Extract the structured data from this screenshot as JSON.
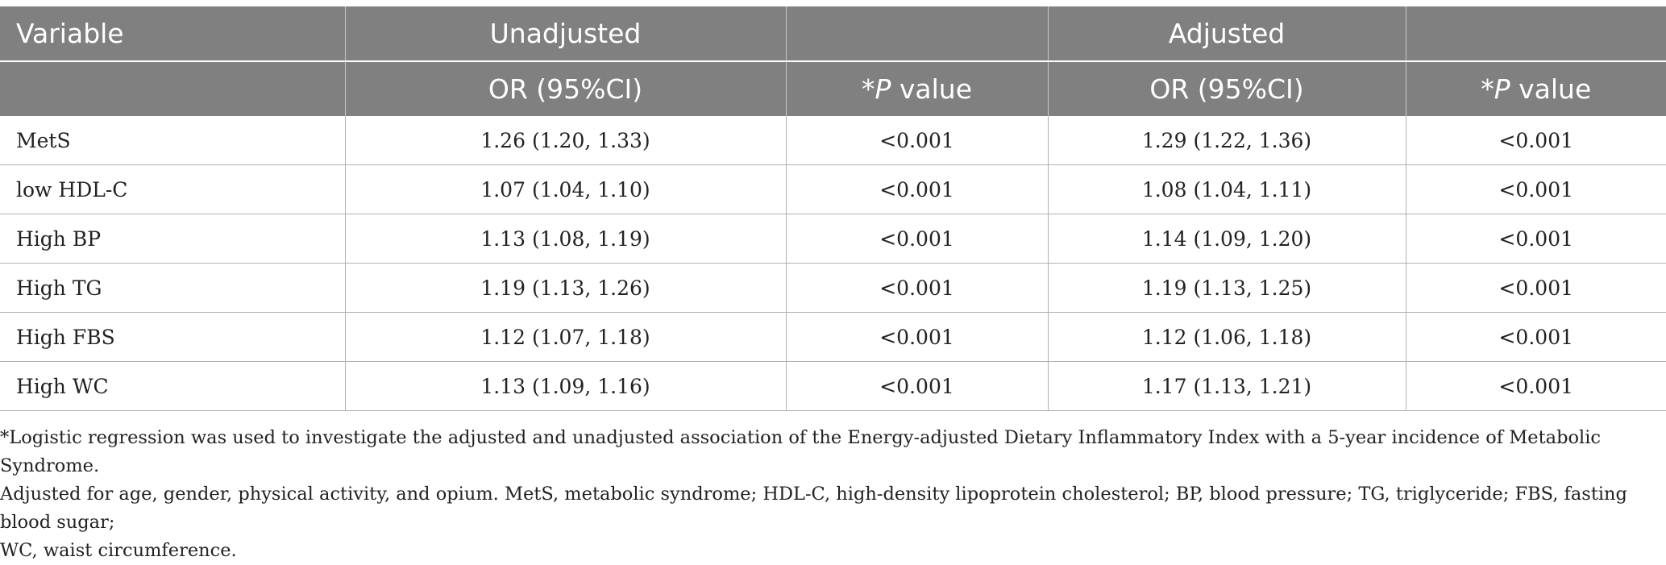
{
  "table": {
    "header_row1": {
      "variable": "Variable",
      "unadjusted": "Unadjusted",
      "adjusted": "Adjusted"
    },
    "header_row2": {
      "or_label": "OR (95%CI)",
      "p_prefix": "*",
      "p_letter": "P",
      "p_suffix": " value"
    },
    "rows": [
      {
        "variable": "MetS",
        "unadj_or": "1.26 (1.20, 1.33)",
        "unadj_p": "<0.001",
        "adj_or": "1.29 (1.22, 1.36)",
        "adj_p": "<0.001"
      },
      {
        "variable": "low HDL-C",
        "unadj_or": "1.07 (1.04, 1.10)",
        "unadj_p": "<0.001",
        "adj_or": "1.08 (1.04, 1.11)",
        "adj_p": "<0.001"
      },
      {
        "variable": "High BP",
        "unadj_or": "1.13 (1.08, 1.19)",
        "unadj_p": "<0.001",
        "adj_or": "1.14 (1.09, 1.20)",
        "adj_p": "<0.001"
      },
      {
        "variable": "High TG",
        "unadj_or": "1.19 (1.13, 1.26)",
        "unadj_p": "<0.001",
        "adj_or": "1.19 (1.13, 1.25)",
        "adj_p": "<0.001"
      },
      {
        "variable": "High FBS",
        "unadj_or": "1.12 (1.07, 1.18)",
        "unadj_p": "<0.001",
        "adj_or": "1.12 (1.06, 1.18)",
        "adj_p": "<0.001"
      },
      {
        "variable": "High WC",
        "unadj_or": "1.13 (1.09, 1.16)",
        "unadj_p": "<0.001",
        "adj_or": "1.17 (1.13, 1.21)",
        "adj_p": "<0.001"
      }
    ],
    "colors": {
      "header_bg": "#808080",
      "header_text": "#ffffff",
      "grid": "#b0b0b0"
    }
  },
  "footnote": {
    "line1": "*Logistic regression was used to investigate the adjusted and unadjusted association of the Energy-adjusted Dietary Inflammatory Index with a 5-year incidence of Metabolic Syndrome.",
    "line2": "Adjusted for age, gender, physical activity, and opium. MetS, metabolic syndrome; HDL-C, high-density lipoprotein cholesterol; BP, blood pressure; TG, triglyceride; FBS, fasting blood sugar;",
    "line3": "WC, waist circumference."
  }
}
